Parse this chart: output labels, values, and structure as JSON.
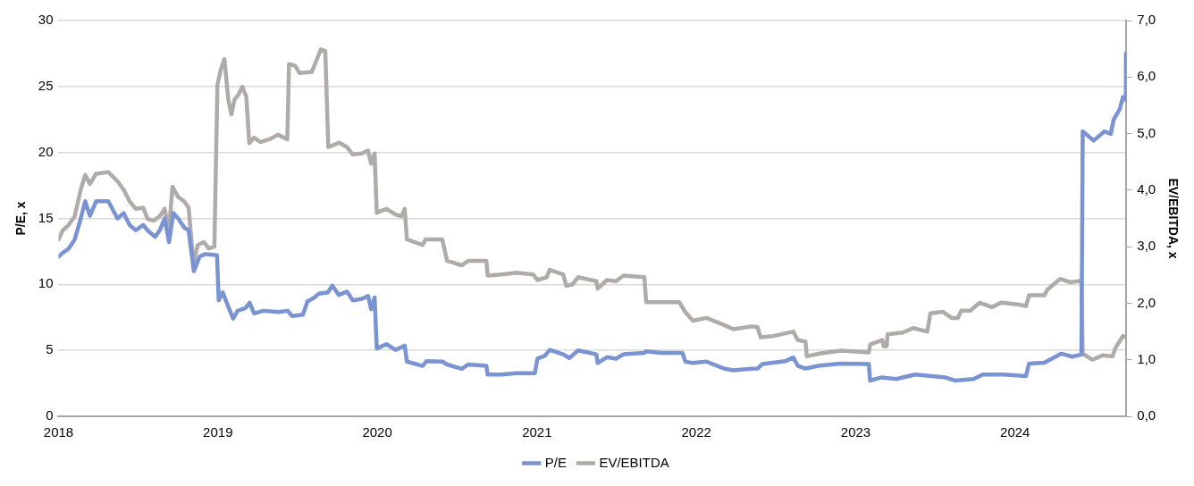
{
  "chart_data": {
    "type": "line",
    "ylabel": "P/E, x",
    "y2label": "EV/EBITDA, x",
    "xlim": [
      "2018-01-01",
      "2024-09-12"
    ],
    "xticks": [
      "2018",
      "2019",
      "2020",
      "2021",
      "2022",
      "2023",
      "2024"
    ],
    "ylim": [
      0,
      30
    ],
    "yticks": [
      0,
      5,
      10,
      15,
      20,
      25,
      30
    ],
    "y2lim": [
      0,
      7
    ],
    "y2ticks": [
      {
        "value": 0,
        "label": "0,0"
      },
      {
        "value": 1,
        "label": "1,0"
      },
      {
        "value": 2,
        "label": "2,0"
      },
      {
        "value": 3,
        "label": "3,0"
      },
      {
        "value": 4,
        "label": "4,0"
      },
      {
        "value": 5,
        "label": "5,0"
      },
      {
        "value": 6,
        "label": "6,0"
      },
      {
        "value": 7,
        "label": "7,0"
      }
    ],
    "grid": "y",
    "legend": "bottom",
    "marker": "none",
    "line_style": "solid",
    "series": [
      {
        "name": "P/E",
        "color": "#7a93d2",
        "x": [
          "2018-01-01",
          "2018-01-11",
          "2018-01-24",
          "2018-02-07",
          "2018-02-21",
          "2018-03-03",
          "2018-03-14",
          "2018-03-28",
          "2018-04-25",
          "2018-05-16",
          "2018-05-30",
          "2018-06-13",
          "2018-06-27",
          "2018-07-14",
          "2018-07-24",
          "2018-08-10",
          "2018-08-21",
          "2018-09-01",
          "2018-09-11",
          "2018-09-21",
          "2018-10-02",
          "2018-10-16",
          "2018-10-26",
          "2018-11-07",
          "2018-11-20",
          "2018-12-03",
          "2018-12-30",
          "2019-01-03",
          "2019-01-12",
          "2019-01-25",
          "2019-02-05",
          "2019-02-15",
          "2019-03-05",
          "2019-03-15",
          "2019-03-25",
          "2019-04-15",
          "2019-05-20",
          "2019-06-10",
          "2019-06-20",
          "2019-07-15",
          "2019-07-25",
          "2019-08-10",
          "2019-08-20",
          "2019-09-10",
          "2019-09-20",
          "2019-10-05",
          "2019-10-24",
          "2019-11-06",
          "2019-11-27",
          "2019-12-11",
          "2019-12-18",
          "2019-12-26",
          "2019-12-31",
          "2020-01-22",
          "2020-02-12",
          "2020-02-26",
          "2020-03-04",
          "2020-03-09",
          "2020-04-14",
          "2020-04-23",
          "2020-05-29",
          "2020-06-09",
          "2020-07-13",
          "2020-07-27",
          "2020-09-07",
          "2020-09-10",
          "2020-10-11",
          "2020-11-15",
          "2020-12-27",
          "2021-01-02",
          "2021-01-19",
          "2021-01-30",
          "2021-03-02",
          "2021-03-16",
          "2021-04-05",
          "2021-05-17",
          "2021-05-20",
          "2021-06-10",
          "2021-07-01",
          "2021-07-18",
          "2021-09-04",
          "2021-09-08",
          "2021-10-12",
          "2021-11-30",
          "2021-12-07",
          "2021-12-24",
          "2022-01-24",
          "2022-03-07",
          "2022-03-27",
          "2022-05-08",
          "2022-05-21",
          "2022-06-01",
          "2022-07-24",
          "2022-08-11",
          "2022-08-21",
          "2022-09-08",
          "2022-10-10",
          "2022-11-28",
          "2023-01-31",
          "2023-02-03",
          "2023-02-28",
          "2023-04-04",
          "2023-05-17",
          "2023-07-26",
          "2023-08-16",
          "2023-09-28",
          "2023-10-19",
          "2023-12-07",
          "2024-01-26",
          "2024-02-02",
          "2024-03-08",
          "2024-04-16",
          "2024-05-11",
          "2024-06-01",
          "2024-06-04",
          "2024-06-29",
          "2024-07-24",
          "2024-08-07",
          "2024-08-14",
          "2024-08-28",
          "2024-09-04",
          "2024-09-10",
          "2024-09-11"
        ],
        "values": [
          12.1,
          12.4,
          12.7,
          13.4,
          15.0,
          16.3,
          15.2,
          16.3,
          16.3,
          15.0,
          15.4,
          14.5,
          14.1,
          14.5,
          14.1,
          13.6,
          14.1,
          15.0,
          13.2,
          15.4,
          15.0,
          14.3,
          14.1,
          11.0,
          12.1,
          12.3,
          12.2,
          8.8,
          9.4,
          8.3,
          7.4,
          8.0,
          8.2,
          8.6,
          7.8,
          8.0,
          7.9,
          8.0,
          7.6,
          7.7,
          8.7,
          9.0,
          9.3,
          9.4,
          9.9,
          9.2,
          9.45,
          8.79,
          8.9,
          9.12,
          8.12,
          9.01,
          5.14,
          5.47,
          5.03,
          5.25,
          5.36,
          4.15,
          3.82,
          4.19,
          4.15,
          3.93,
          3.6,
          3.93,
          3.82,
          3.16,
          3.16,
          3.27,
          3.27,
          4.37,
          4.59,
          5.03,
          4.7,
          4.42,
          4.99,
          4.7,
          4.04,
          4.48,
          4.37,
          4.7,
          4.81,
          4.92,
          4.81,
          4.81,
          4.15,
          4.04,
          4.15,
          3.6,
          3.49,
          3.6,
          3.62,
          3.96,
          4.18,
          4.46,
          3.84,
          3.62,
          3.84,
          4.0,
          3.96,
          2.71,
          2.94,
          2.83,
          3.17,
          2.94,
          2.71,
          2.83,
          3.17,
          3.17,
          3.05,
          4.0,
          4.07,
          4.75,
          4.52,
          4.68,
          21.6,
          20.9,
          21.6,
          21.4,
          22.5,
          23.3,
          24.2,
          24.0,
          27.5
        ]
      },
      {
        "name": "EV/EBITDA",
        "color": "#afabab",
        "axis": "y2",
        "x": [
          "2018-01-01",
          "2018-01-11",
          "2018-01-24",
          "2018-02-07",
          "2018-02-21",
          "2018-03-03",
          "2018-03-14",
          "2018-03-28",
          "2018-04-25",
          "2018-05-16",
          "2018-05-30",
          "2018-06-13",
          "2018-06-27",
          "2018-07-14",
          "2018-07-24",
          "2018-08-07",
          "2018-08-21",
          "2018-09-01",
          "2018-09-11",
          "2018-09-19",
          "2018-10-02",
          "2018-10-16",
          "2018-10-26",
          "2018-11-06",
          "2018-11-16",
          "2018-11-30",
          "2018-12-11",
          "2018-12-24",
          "2018-12-31",
          "2019-01-07",
          "2019-01-16",
          "2019-01-25",
          "2019-02-01",
          "2019-02-08",
          "2019-02-18",
          "2019-02-26",
          "2019-03-07",
          "2019-03-14",
          "2019-03-25",
          "2019-04-08",
          "2019-04-29",
          "2019-05-19",
          "2019-06-09",
          "2019-06-13",
          "2019-06-27",
          "2019-07-07",
          "2019-08-04",
          "2019-08-25",
          "2019-09-04",
          "2019-09-11",
          "2019-10-06",
          "2019-10-24",
          "2019-11-06",
          "2019-11-27",
          "2019-12-11",
          "2019-12-18",
          "2019-12-26",
          "2019-12-31",
          "2020-01-22",
          "2020-02-12",
          "2020-02-26",
          "2020-03-04",
          "2020-03-09",
          "2020-04-14",
          "2020-04-21",
          "2020-05-29",
          "2020-06-09",
          "2020-07-13",
          "2020-07-27",
          "2020-09-07",
          "2020-09-10",
          "2020-10-11",
          "2020-11-15",
          "2020-12-23",
          "2021-01-02",
          "2021-01-23",
          "2021-01-30",
          "2021-03-02",
          "2021-03-09",
          "2021-03-23",
          "2021-04-05",
          "2021-05-17",
          "2021-05-20",
          "2021-06-10",
          "2021-07-01",
          "2021-07-18",
          "2021-09-04",
          "2021-09-08",
          "2021-10-12",
          "2021-11-23",
          "2021-12-07",
          "2021-12-24",
          "2022-01-24",
          "2022-03-07",
          "2022-03-27",
          "2022-05-08",
          "2022-05-21",
          "2022-05-28",
          "2022-06-26",
          "2022-07-31",
          "2022-08-11",
          "2022-08-21",
          "2022-09-08",
          "2022-09-11",
          "2022-10-10",
          "2022-11-28",
          "2023-01-31",
          "2023-02-03",
          "2023-03-03",
          "2023-03-06",
          "2023-03-13",
          "2023-03-15",
          "2023-04-18",
          "2023-05-13",
          "2023-06-14",
          "2023-06-21",
          "2023-07-19",
          "2023-08-09",
          "2023-08-23",
          "2023-08-31",
          "2023-09-21",
          "2023-10-12",
          "2023-11-09",
          "2023-11-30",
          "2024-01-08",
          "2024-01-26",
          "2024-02-02",
          "2024-03-08",
          "2024-03-15",
          "2024-04-13",
          "2024-05-07",
          "2024-06-01",
          "2024-06-04",
          "2024-06-26",
          "2024-07-20",
          "2024-08-11",
          "2024-08-18",
          "2024-09-04",
          "2024-09-11"
        ],
        "values": [
          3.13,
          3.29,
          3.38,
          3.54,
          4.01,
          4.27,
          4.11,
          4.29,
          4.32,
          4.16,
          4.01,
          3.8,
          3.67,
          3.69,
          3.49,
          3.46,
          3.54,
          3.67,
          3.29,
          4.06,
          3.88,
          3.8,
          3.69,
          2.71,
          3.03,
          3.08,
          2.97,
          3.0,
          5.86,
          6.11,
          6.32,
          5.6,
          5.34,
          5.6,
          5.7,
          5.83,
          5.66,
          4.83,
          4.93,
          4.85,
          4.9,
          4.98,
          4.9,
          6.23,
          6.2,
          6.07,
          6.09,
          6.49,
          6.46,
          4.76,
          4.84,
          4.76,
          4.63,
          4.65,
          4.7,
          4.47,
          4.65,
          3.6,
          3.67,
          3.57,
          3.54,
          3.67,
          3.13,
          3.03,
          3.13,
          3.13,
          2.75,
          2.67,
          2.75,
          2.75,
          2.49,
          2.51,
          2.54,
          2.51,
          2.41,
          2.46,
          2.59,
          2.51,
          2.31,
          2.33,
          2.46,
          2.39,
          2.26,
          2.41,
          2.39,
          2.49,
          2.46,
          2.02,
          2.02,
          2.02,
          1.84,
          1.69,
          1.74,
          1.61,
          1.54,
          1.59,
          1.58,
          1.4,
          1.42,
          1.48,
          1.5,
          1.35,
          1.32,
          1.06,
          1.11,
          1.16,
          1.13,
          1.27,
          1.35,
          1.24,
          1.24,
          1.45,
          1.48,
          1.56,
          1.5,
          1.82,
          1.85,
          1.74,
          1.74,
          1.87,
          1.87,
          2.01,
          1.93,
          2.01,
          1.98,
          1.95,
          2.14,
          2.14,
          2.24,
          2.43,
          2.37,
          2.4,
          1.11,
          1.0,
          1.08,
          1.06,
          1.21,
          1.42,
          1.4
        ]
      }
    ]
  }
}
